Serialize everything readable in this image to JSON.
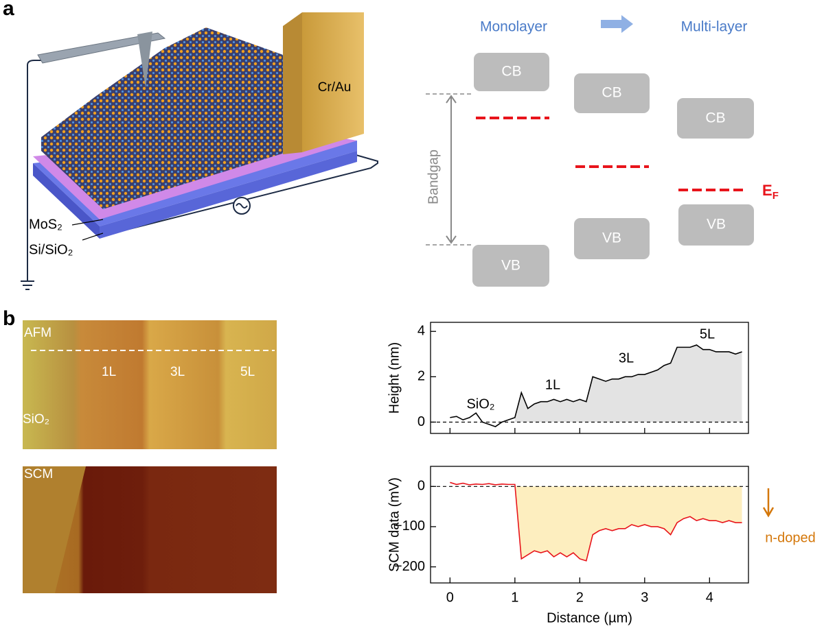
{
  "panel_labels": [
    "a",
    "b"
  ],
  "illustration": {
    "electrode": "Cr/Au",
    "layer": "MoS₂",
    "substrate": "Si/SiO₂"
  },
  "band_diagram": {
    "left_title": "Monolayer",
    "right_title": "Multi-layer",
    "bandgap": "Bandgap",
    "columns": [
      {
        "cb": "CB",
        "vb": "VB"
      },
      {
        "cb": "CB",
        "vb": "VB"
      },
      {
        "cb": "CB",
        "vb": "VB"
      }
    ],
    "fermi": {
      "main": "E",
      "sub": "F"
    }
  },
  "images": {
    "afm": {
      "title": "AFM",
      "labels": [
        "1L",
        "3L",
        "5L"
      ],
      "substrate": "SiO₂"
    },
    "scm": {
      "title": "SCM"
    }
  },
  "chart_data": [
    {
      "type": "line",
      "ylabel": "Height (nm)",
      "x": [
        0,
        0.1,
        0.2,
        0.3,
        0.4,
        0.5,
        0.6,
        0.7,
        0.8,
        0.9,
        1.0,
        1.1,
        1.2,
        1.3,
        1.4,
        1.5,
        1.6,
        1.7,
        1.8,
        1.9,
        2.0,
        2.1,
        2.2,
        2.3,
        2.4,
        2.5,
        2.6,
        2.7,
        2.8,
        2.9,
        3.0,
        3.1,
        3.2,
        3.3,
        3.4,
        3.5,
        3.6,
        3.7,
        3.8,
        3.9,
        4.0,
        4.1,
        4.2,
        4.3,
        4.4,
        4.5
      ],
      "series": [
        {
          "color": "#000000",
          "fill": "#e3e3e3",
          "values": [
            0.2,
            0.25,
            0.1,
            0.2,
            0.4,
            0.0,
            -0.1,
            -0.2,
            0.0,
            0.1,
            0.2,
            1.3,
            0.6,
            0.8,
            0.9,
            0.9,
            1.0,
            0.9,
            1.0,
            0.9,
            1.0,
            0.9,
            2.0,
            1.9,
            1.8,
            1.9,
            1.9,
            2.0,
            2.0,
            2.1,
            2.1,
            2.2,
            2.3,
            2.5,
            2.6,
            3.3,
            3.3,
            3.3,
            3.4,
            3.2,
            3.2,
            3.1,
            3.1,
            3.1,
            3.0,
            3.1
          ]
        }
      ],
      "shade_from": 1,
      "reference_y": 0,
      "annotations": [
        "SiO₂",
        "1L",
        "3L",
        "5L"
      ],
      "xlim": [
        -0.3,
        4.6
      ],
      "ylim": [
        -0.5,
        4.4
      ],
      "xticks": [
        0,
        1,
        2,
        3,
        4
      ],
      "show_xtick_labels": false,
      "yticks": [
        0,
        2,
        4
      ]
    },
    {
      "type": "line",
      "xlabel": "Distance (µm)",
      "ylabel": "SCM data (mV)",
      "x": [
        0,
        0.1,
        0.2,
        0.3,
        0.4,
        0.5,
        0.6,
        0.7,
        0.8,
        0.9,
        1.0,
        1.1,
        1.2,
        1.3,
        1.4,
        1.5,
        1.6,
        1.7,
        1.8,
        1.9,
        2.0,
        2.1,
        2.2,
        2.3,
        2.4,
        2.5,
        2.6,
        2.7,
        2.8,
        2.9,
        3.0,
        3.1,
        3.2,
        3.3,
        3.4,
        3.5,
        3.6,
        3.7,
        3.8,
        3.9,
        4.0,
        4.1,
        4.2,
        4.3,
        4.4,
        4.5
      ],
      "series": [
        {
          "color": "#e8141b",
          "fill": "#fdeebf",
          "values": [
            10,
            5,
            8,
            4,
            6,
            5,
            7,
            4,
            6,
            5,
            5,
            -180,
            -170,
            -160,
            -165,
            -160,
            -175,
            -165,
            -175,
            -165,
            -180,
            -185,
            -120,
            -110,
            -105,
            -110,
            -105,
            -105,
            -95,
            -100,
            -95,
            -100,
            -100,
            -105,
            -120,
            -90,
            -80,
            -75,
            -85,
            -80,
            -85,
            -85,
            -90,
            -85,
            -90,
            -90
          ]
        }
      ],
      "shade_from": 1,
      "reference_y": 0,
      "side_note": "n-doped",
      "xlim": [
        -0.3,
        4.6
      ],
      "ylim": [
        -240,
        50
      ],
      "xticks": [
        0,
        1,
        2,
        3,
        4
      ],
      "show_xtick_labels": true,
      "yticks": [
        {
          "value": -200,
          "label": "−200"
        },
        {
          "value": -100,
          "label": "−100"
        },
        0
      ]
    }
  ]
}
